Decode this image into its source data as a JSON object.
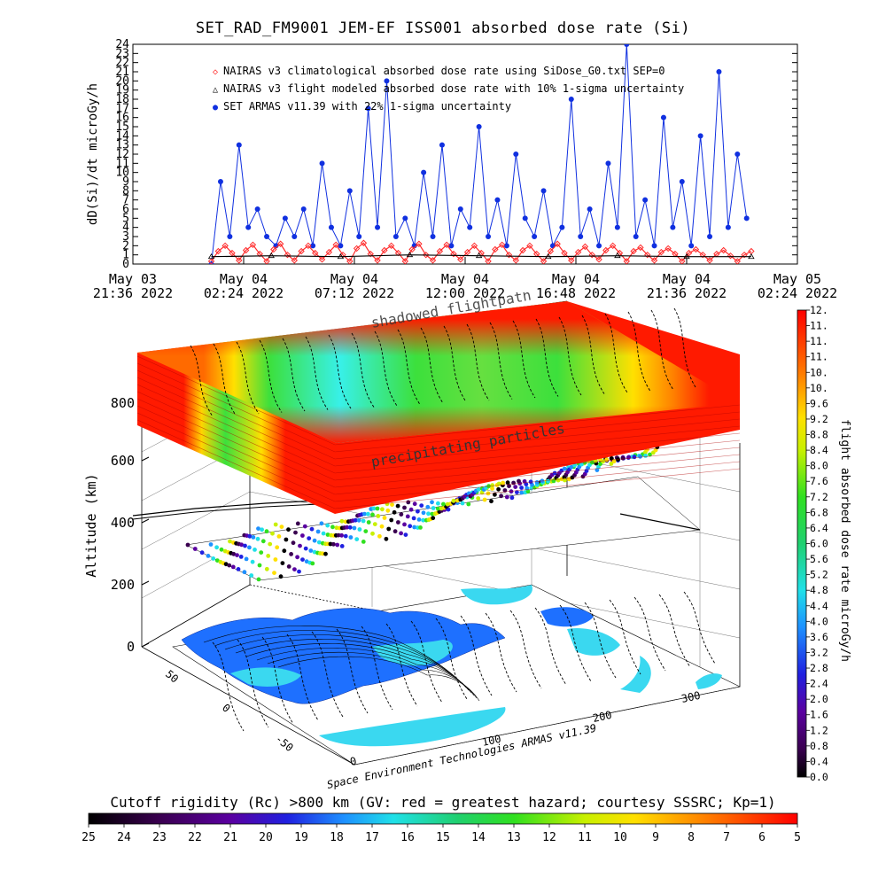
{
  "top_chart": {
    "title": "SET_RAD_FM9001  JEM-EF ISS001 absorbed dose rate (Si)",
    "ylabel": "dD(Si)/dt microGy/h",
    "legend": [
      {
        "symbol": "◇",
        "color": "#ff2a2a",
        "text": "NAIRAS v3 climatological absorbed dose rate using SiDose_G0.txt SEP=0"
      },
      {
        "symbol": "△",
        "color": "#000000",
        "text": "NAIRAS v3 flight modeled absorbed dose rate with 10% 1-sigma uncertainty"
      },
      {
        "symbol": "●",
        "color": "#1030e0",
        "text": "SET ARMAS v11.39 with 22% 1-sigma uncertainty"
      }
    ],
    "x_ticks": [
      {
        "line1": "May 03",
        "line2": "21:36 2022"
      },
      {
        "line1": "May 04",
        "line2": "02:24 2022"
      },
      {
        "line1": "May 04",
        "line2": "07:12 2022"
      },
      {
        "line1": "May 04",
        "line2": "12:00 2022"
      },
      {
        "line1": "May 04",
        "line2": "16:48 2022"
      },
      {
        "line1": "May 04",
        "line2": "21:36 2022"
      },
      {
        "line1": "May 05",
        "line2": "02:24 2022"
      }
    ],
    "y_ticks": [
      "0",
      "1",
      "2",
      "3",
      "4",
      "5",
      "6",
      "7",
      "8",
      "9",
      "10",
      "11",
      "12",
      "13",
      "14",
      "15",
      "16",
      "17",
      "18",
      "19",
      "20",
      "21",
      "22",
      "23",
      "24"
    ]
  },
  "chart_data": [
    {
      "type": "scatter",
      "title": "SET_RAD_FM9001  JEM-EF ISS001 absorbed dose rate (Si)",
      "xlabel": "",
      "ylabel": "dD(Si)/dt microGy/h",
      "xlim": [
        "May 03 21:36 2022",
        "May 05 02:24 2022"
      ],
      "ylim": [
        0,
        24
      ],
      "series": [
        {
          "name": "SET ARMAS v11.39 with 22% 1-sigma uncertainty",
          "color": "#1030e0",
          "x_hours_from_start": [
            3.4,
            3.8,
            4.2,
            4.6,
            5.0,
            5.4,
            5.8,
            6.2,
            6.6,
            7.0,
            7.4,
            7.8,
            8.2,
            8.6,
            9.0,
            9.4,
            9.8,
            10.2,
            10.6,
            11.0,
            11.4,
            11.8,
            12.2,
            12.6,
            13.0,
            13.4,
            13.8,
            14.2,
            14.6,
            15.0,
            15.4,
            15.8,
            16.2,
            16.6,
            17.0,
            17.4,
            17.8,
            18.2,
            18.6,
            19.0,
            19.4,
            19.8,
            20.2,
            20.6,
            21.0,
            21.4,
            21.8,
            22.2,
            22.6,
            23.0,
            23.4,
            23.8,
            24.2,
            24.6,
            25.0,
            25.4,
            25.8,
            26.2,
            26.6
          ],
          "y": [
            0,
            9,
            3,
            13,
            4,
            6,
            3,
            2,
            5,
            3,
            6,
            2,
            11,
            4,
            2,
            8,
            3,
            17,
            4,
            20,
            3,
            5,
            2,
            10,
            3,
            13,
            2,
            6,
            4,
            15,
            3,
            7,
            2,
            12,
            5,
            3,
            8,
            2,
            4,
            18,
            3,
            6,
            2,
            11,
            4,
            24,
            3,
            7,
            2,
            16,
            4,
            9,
            2,
            14,
            3,
            21,
            4,
            12,
            5
          ]
        },
        {
          "name": "NAIRAS v3 climatological absorbed dose rate using SiDose_G0.txt SEP=0",
          "color": "#ff2a2a",
          "x_hours_from_start": [
            3.4,
            3.7,
            4.0,
            4.3,
            4.6,
            4.9,
            5.2,
            5.5,
            5.8,
            6.1,
            6.4,
            6.7,
            7.0,
            7.3,
            7.6,
            7.9,
            8.2,
            8.5,
            8.8,
            9.1,
            9.4,
            9.7,
            10.0,
            10.3,
            10.6,
            10.9,
            11.2,
            11.5,
            11.8,
            12.1,
            12.4,
            12.7,
            13.0,
            13.3,
            13.6,
            13.9,
            14.2,
            14.5,
            14.8,
            15.1,
            15.4,
            15.7,
            16.0,
            16.3,
            16.6,
            16.9,
            17.2,
            17.5,
            17.8,
            18.1,
            18.4,
            18.7,
            19.0,
            19.3,
            19.6,
            19.9,
            20.2,
            20.5,
            20.8,
            21.1,
            21.4,
            21.7,
            22.0,
            22.3,
            22.6,
            22.9,
            23.2,
            23.5,
            23.8,
            24.1,
            24.4,
            24.7,
            25.0,
            25.3,
            25.6,
            25.9,
            26.2,
            26.5,
            26.8
          ],
          "y": [
            0.3,
            1.4,
            2.0,
            1.2,
            0.4,
            1.5,
            2.1,
            1.1,
            0.3,
            1.6,
            2.2,
            1.0,
            0.4,
            1.4,
            2.0,
            1.2,
            0.5,
            1.3,
            2.1,
            1.0,
            0.3,
            1.7,
            2.3,
            1.1,
            0.4,
            1.5,
            2.0,
            1.2,
            0.3,
            1.6,
            2.2,
            1.0,
            0.4,
            1.4,
            2.1,
            1.1,
            0.5,
            1.3,
            2.0,
            1.2,
            0.3,
            1.6,
            2.1,
            1.0,
            0.4,
            1.5,
            2.0,
            1.1,
            0.3,
            1.4,
            2.2,
            1.2,
            0.4,
            1.3,
            1.9,
            1.0,
            0.5,
            1.5,
            2.0,
            1.2,
            0.3,
            1.4,
            1.8,
            1.0,
            0.4,
            1.3,
            1.7,
            1.1,
            0.3,
            1.2,
            1.6,
            1.0,
            0.4,
            1.1,
            1.5,
            0.9,
            0.3,
            1.0,
            1.4
          ]
        },
        {
          "name": "NAIRAS v3 flight modeled absorbed dose rate with 10% 1-sigma uncertainty",
          "color": "#000000",
          "x_hours_from_start": [
            3.4,
            6.0,
            9.0,
            12.0,
            15.0,
            18.0,
            21.0,
            24.0,
            26.8
          ],
          "y": [
            0.8,
            0.9,
            0.8,
            1.0,
            0.9,
            0.8,
            0.9,
            0.8,
            0.8
          ]
        }
      ]
    },
    {
      "type": "heatmap",
      "title": "",
      "xlabel": "",
      "ylabel": "Altitude (km)",
      "z_ticks": [
        "0",
        "200",
        "400",
        "600",
        "800"
      ],
      "lon_ticks": [
        "0",
        "100",
        "200",
        "300"
      ],
      "lat_ticks": [
        "50",
        "0",
        "-50"
      ],
      "layers": [
        "Cutoff rigidity (Rc) >800 km",
        "ISS flight path ~400 km",
        "Earth surface"
      ],
      "annotations": [
        "shadowed flightpath",
        "precipitating particles"
      ],
      "credit": "Space Environment Technologies ARMAS v11.39"
    }
  ],
  "right_colorbar": {
    "label": "flight absorbed dose rate microGy/h",
    "ticks": [
      "0.0",
      "0.4",
      "0.8",
      "1.2",
      "1.6",
      "2.0",
      "2.4",
      "2.8",
      "3.2",
      "3.6",
      "4.0",
      "4.4",
      "4.8",
      "5.2",
      "5.6",
      "6.0",
      "6.4",
      "6.8",
      "7.2",
      "7.6",
      "8.0",
      "8.4",
      "8.8",
      "9.2",
      "9.6",
      "10.",
      "10.",
      "11.",
      "11.",
      "11.",
      "12."
    ]
  },
  "bottom_colorbar": {
    "title": "Cutoff rigidity (Rc) >800 km (GV: red = greatest hazard; courtesy SSSRC; Kp=1)",
    "ticks": [
      "25",
      "24",
      "23",
      "22",
      "21",
      "20",
      "19",
      "18",
      "17",
      "16",
      "15",
      "14",
      "13",
      "12",
      "11",
      "10",
      "9",
      "8",
      "7",
      "6",
      "5"
    ]
  },
  "colors": {
    "armas_blue": "#1030e0",
    "nairas_red": "#ff2a2a",
    "slab_red": "#ff1a00",
    "slab_green": "#3ce03c",
    "slab_cyan": "#38f0e8",
    "ocean_cyan": "#3ad8f0"
  }
}
